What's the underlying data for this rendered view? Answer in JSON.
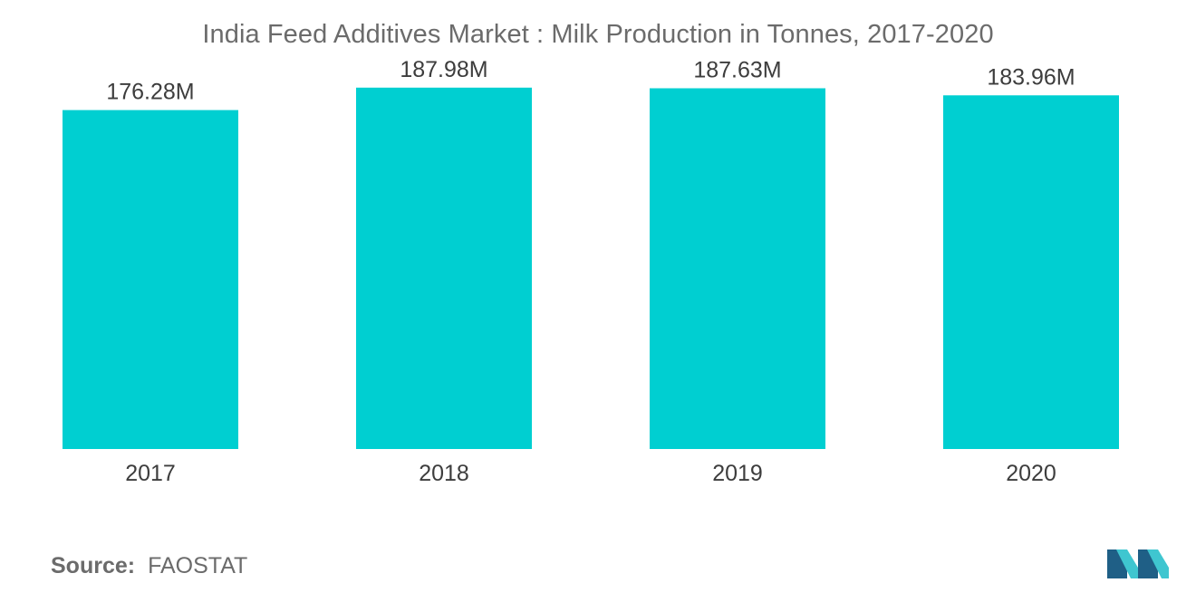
{
  "title": "India Feed Additives Market : Milk Production in Tonnes, 2017-2020",
  "source": {
    "label": "Source:",
    "value": "FAOSTAT"
  },
  "colors": {
    "bar": "#00cfd1",
    "text": "#3d3d3d",
    "muted": "#6b6b6b",
    "logo_dark": "#1f5f86",
    "logo_light": "#3fc6d0"
  },
  "logo": {
    "icon": "mordor-intelligence-logo-icon"
  },
  "chart_data": {
    "type": "bar",
    "title": "India Feed Additives Market : Milk Production in Tonnes, 2017-2020",
    "xlabel": "",
    "ylabel": "",
    "categories": [
      "2017",
      "2018",
      "2019",
      "2020"
    ],
    "values": [
      176.28,
      187.98,
      187.63,
      183.96
    ],
    "value_labels": [
      "176.28M",
      "187.98M",
      "187.63M",
      "183.96M"
    ],
    "unit": "M",
    "ylim": [
      0,
      210
    ],
    "grid": false,
    "legend": "none"
  }
}
